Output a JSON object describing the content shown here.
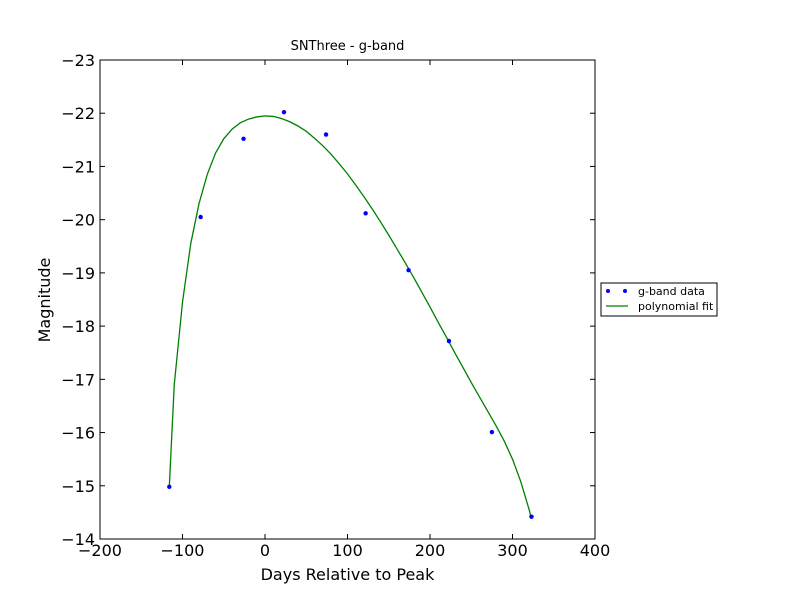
{
  "chart_data": {
    "type": "scatter",
    "title": "SNThree - g-band",
    "xlabel": "Days Relative to Peak",
    "ylabel": "Magnitude",
    "xlim": [
      -200,
      400
    ],
    "ylim": [
      -14,
      -23
    ],
    "y_inverted": true,
    "xticks": [
      -200,
      -100,
      0,
      100,
      200,
      300,
      400
    ],
    "xtick_labels": [
      "−200",
      "−100",
      "0",
      "100",
      "200",
      "300",
      "400"
    ],
    "yticks": [
      -23,
      -22,
      -21,
      -20,
      -19,
      -18,
      -17,
      -16,
      -15,
      -14
    ],
    "ytick_labels": [
      "−23",
      "−22",
      "−21",
      "−20",
      "−19",
      "−18",
      "−17",
      "−16",
      "−15",
      "−14"
    ],
    "grid": false,
    "legend_position": "right, outside plot",
    "series": [
      {
        "name": "g-band data",
        "kind": "points",
        "color": "#0000ff",
        "x": [
          -116,
          -78,
          -26,
          23,
          74,
          122,
          174,
          223,
          275,
          323
        ],
        "y": [
          -14.98,
          -20.05,
          -21.52,
          -22.02,
          -21.6,
          -20.12,
          -19.05,
          -17.72,
          -16.01,
          -14.42
        ]
      },
      {
        "name": "polynomial fit",
        "kind": "line",
        "color": "#008000",
        "x": [
          -116,
          -110,
          -100,
          -90,
          -80,
          -70,
          -60,
          -50,
          -40,
          -30,
          -20,
          -10,
          0,
          10,
          20,
          30,
          40,
          50,
          60,
          70,
          80,
          90,
          100,
          110,
          120,
          130,
          140,
          150,
          160,
          170,
          180,
          190,
          200,
          210,
          220,
          230,
          240,
          250,
          260,
          270,
          280,
          290,
          300,
          310,
          320,
          323
        ],
        "y": [
          -14.98,
          -16.9,
          -18.45,
          -19.55,
          -20.3,
          -20.85,
          -21.25,
          -21.52,
          -21.7,
          -21.82,
          -21.89,
          -21.93,
          -21.95,
          -21.94,
          -21.9,
          -21.84,
          -21.76,
          -21.66,
          -21.53,
          -21.39,
          -21.23,
          -21.05,
          -20.86,
          -20.65,
          -20.43,
          -20.2,
          -19.96,
          -19.71,
          -19.45,
          -19.19,
          -18.92,
          -18.64,
          -18.36,
          -18.07,
          -17.79,
          -17.5,
          -17.22,
          -16.94,
          -16.67,
          -16.4,
          -16.13,
          -15.84,
          -15.5,
          -15.08,
          -14.56,
          -14.38
        ]
      }
    ]
  }
}
